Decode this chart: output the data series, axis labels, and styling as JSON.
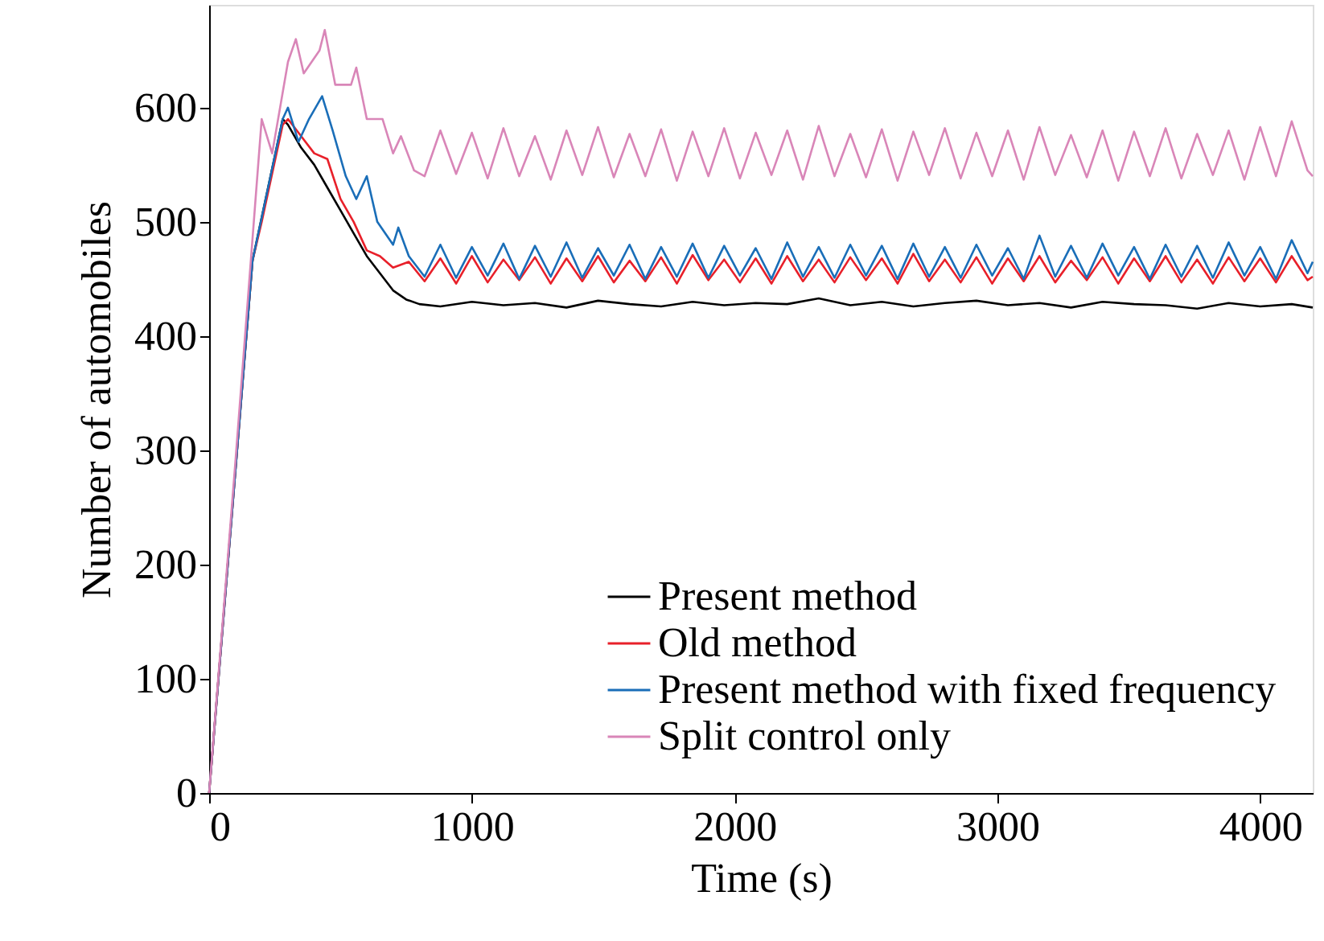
{
  "chart_data": {
    "type": "line",
    "xlabel": "Time (s)",
    "ylabel": "Number of automobiles",
    "xlim": [
      0,
      4200
    ],
    "ylim": [
      0,
      690
    ],
    "xticks": [
      0,
      1000,
      2000,
      3000,
      4000
    ],
    "yticks": [
      0,
      100,
      200,
      300,
      400,
      500,
      600
    ],
    "grid": false,
    "legend": "bottom right",
    "marker": "none",
    "line_style": "solid",
    "series": [
      {
        "name": "Present method",
        "color": "#000000",
        "x": [
          0,
          165,
          280,
          300,
          350,
          400,
          450,
          500,
          550,
          600,
          650,
          700,
          750,
          800,
          880,
          1000,
          1120,
          1240,
          1360,
          1480,
          1600,
          1720,
          1840,
          1960,
          2080,
          2200,
          2320,
          2440,
          2560,
          2680,
          2800,
          2920,
          3040,
          3160,
          3280,
          3400,
          3520,
          3640,
          3760,
          3880,
          4000,
          4120,
          4200
        ],
        "values": [
          0,
          466,
          590,
          585,
          565,
          550,
          530,
          510,
          490,
          470,
          455,
          440,
          432,
          428,
          426,
          430,
          427,
          429,
          425,
          431,
          428,
          426,
          430,
          427,
          429,
          428,
          433,
          427,
          430,
          426,
          429,
          431,
          427,
          429,
          425,
          430,
          428,
          427,
          424,
          429,
          426,
          428,
          425
        ]
      },
      {
        "name": "Old method",
        "color": "#e8202a",
        "x": [
          0,
          165,
          200,
          280,
          300,
          350,
          400,
          450,
          500,
          550,
          600,
          650,
          700,
          760,
          820,
          880,
          940,
          1000,
          1060,
          1120,
          1180,
          1240,
          1300,
          1360,
          1420,
          1480,
          1540,
          1600,
          1660,
          1720,
          1780,
          1840,
          1900,
          1960,
          2020,
          2080,
          2140,
          2200,
          2260,
          2320,
          2380,
          2440,
          2500,
          2560,
          2620,
          2680,
          2740,
          2800,
          2860,
          2920,
          2980,
          3040,
          3100,
          3160,
          3220,
          3280,
          3340,
          3400,
          3460,
          3520,
          3580,
          3640,
          3700,
          3760,
          3820,
          3880,
          3940,
          4000,
          4060,
          4120,
          4180,
          4200
        ],
        "values": [
          0,
          466,
          500,
          585,
          590,
          575,
          560,
          555,
          520,
          500,
          475,
          470,
          460,
          465,
          448,
          468,
          446,
          470,
          447,
          467,
          449,
          469,
          446,
          468,
          448,
          470,
          447,
          466,
          448,
          469,
          446,
          471,
          449,
          467,
          447,
          468,
          446,
          470,
          448,
          467,
          447,
          469,
          449,
          468,
          446,
          472,
          448,
          467,
          447,
          469,
          446,
          468,
          448,
          470,
          447,
          466,
          449,
          469,
          446,
          468,
          448,
          470,
          447,
          467,
          446,
          469,
          448,
          468,
          447,
          470,
          449,
          452
        ]
      },
      {
        "name": "Present method with fixed frequency",
        "color": "#1a6eb8",
        "x": [
          0,
          165,
          280,
          300,
          340,
          380,
          430,
          470,
          520,
          560,
          600,
          640,
          700,
          720,
          760,
          820,
          880,
          940,
          1000,
          1060,
          1120,
          1180,
          1240,
          1300,
          1360,
          1420,
          1480,
          1540,
          1600,
          1660,
          1720,
          1780,
          1840,
          1900,
          1960,
          2020,
          2080,
          2140,
          2200,
          2260,
          2320,
          2380,
          2440,
          2500,
          2560,
          2620,
          2680,
          2740,
          2800,
          2860,
          2920,
          2980,
          3040,
          3100,
          3160,
          3220,
          3280,
          3340,
          3400,
          3460,
          3520,
          3580,
          3640,
          3700,
          3760,
          3820,
          3880,
          3940,
          4000,
          4060,
          4120,
          4180,
          4200
        ],
        "values": [
          0,
          466,
          590,
          600,
          570,
          590,
          610,
          580,
          540,
          520,
          540,
          500,
          480,
          495,
          470,
          452,
          480,
          451,
          478,
          453,
          481,
          450,
          479,
          452,
          482,
          451,
          477,
          453,
          480,
          450,
          478,
          452,
          481,
          451,
          479,
          453,
          477,
          450,
          482,
          452,
          478,
          451,
          480,
          453,
          479,
          450,
          481,
          452,
          478,
          451,
          480,
          453,
          477,
          450,
          488,
          452,
          479,
          451,
          481,
          453,
          478,
          450,
          480,
          452,
          479,
          451,
          482,
          453,
          478,
          450,
          484,
          455,
          465
        ]
      },
      {
        "name": "Split control only",
        "color": "#d986b8",
        "x": [
          0,
          100,
          200,
          240,
          300,
          330,
          360,
          420,
          440,
          480,
          540,
          560,
          600,
          660,
          700,
          730,
          780,
          820,
          880,
          940,
          1000,
          1060,
          1120,
          1180,
          1240,
          1300,
          1360,
          1420,
          1480,
          1540,
          1600,
          1660,
          1720,
          1780,
          1840,
          1900,
          1960,
          2020,
          2080,
          2140,
          2200,
          2260,
          2320,
          2380,
          2440,
          2500,
          2560,
          2620,
          2680,
          2740,
          2800,
          2860,
          2920,
          2980,
          3040,
          3100,
          3160,
          3220,
          3280,
          3340,
          3400,
          3460,
          3520,
          3580,
          3640,
          3700,
          3760,
          3820,
          3880,
          3940,
          4000,
          4060,
          4120,
          4180,
          4200
        ],
        "values": [
          0,
          290,
          590,
          560,
          640,
          660,
          630,
          650,
          668,
          620,
          620,
          635,
          590,
          590,
          560,
          575,
          545,
          540,
          580,
          542,
          578,
          538,
          582,
          540,
          575,
          537,
          580,
          541,
          583,
          539,
          577,
          540,
          581,
          536,
          579,
          540,
          582,
          538,
          578,
          541,
          580,
          537,
          584,
          540,
          577,
          539,
          581,
          536,
          579,
          541,
          582,
          538,
          578,
          540,
          580,
          537,
          583,
          541,
          576,
          539,
          580,
          536,
          579,
          540,
          582,
          538,
          577,
          541,
          580,
          537,
          583,
          540,
          588,
          545,
          540
        ]
      }
    ]
  }
}
